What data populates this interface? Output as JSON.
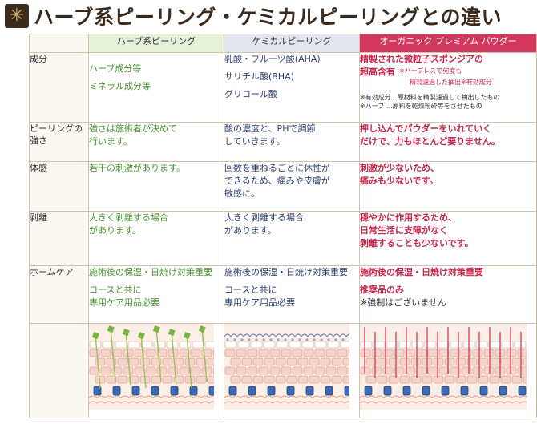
{
  "title": {
    "text": "ハーブ系ピーリング・ケミカルピーリングとの違い"
  },
  "columns": {
    "herb": "ハーブ系ピーリング",
    "chemical": "ケミカルピーリング",
    "organic": "オーガニック プレミアム パウダー"
  },
  "rows": {
    "ingredients": {
      "label": "成分",
      "herb": [
        "ハーブ成分等",
        "ミネラル成分等"
      ],
      "chemical": [
        "乳酸・フルーツ酸(AHA)",
        "サリチル酸(BHA)",
        "グリコール酸"
      ],
      "organic_main_1": "精製された微粒子スポンジアの",
      "organic_main_2": "超高含有",
      "organic_small_1": "※ハーブレスで何度も",
      "organic_small_2": "精製濾過した抽出※有効成分",
      "organic_note_1": "※有効成分…原材料を精製濾過して抽出したもの",
      "organic_note_2": "※ハーブ …原料を乾燥粉砕等をさせたもの"
    },
    "strength": {
      "label_1": "ピーリングの",
      "label_2": "強さ",
      "herb": [
        "強さは施術者が決めて",
        "行います。"
      ],
      "chemical": [
        "酸の濃度と、PHで調節",
        "していきます。"
      ],
      "organic": [
        "押し込んでパウダーをいれていく",
        "だけで、力もほとんど要りません。"
      ]
    },
    "feel": {
      "label": "体感",
      "herb": [
        "若干の刺激があります。"
      ],
      "chemical": [
        "回数を重ねるごとに休性が",
        "できるため、痛みや皮膚が",
        "敏感に。"
      ],
      "organic": [
        "刺激が少ないため、",
        "痛みも少ないです。"
      ]
    },
    "peeling": {
      "label": "剥離",
      "herb": [
        "大きく剥離する場合",
        "があります。"
      ],
      "chemical": [
        "大きく剥離する場合",
        "があります。"
      ],
      "organic": [
        "穏やかに作用するため、",
        "日常生活に支障がなく",
        "剥離することも少ないです。"
      ]
    },
    "homecare": {
      "label": "ホームケア",
      "herb": [
        "施術後の保湿・日焼け対策重要",
        "コースと共に",
        "専用ケア用品必要"
      ],
      "chemical": [
        "施術後の保湿・日焼け対策重要",
        "コースと共に",
        "専用ケア用品必要"
      ],
      "organic_1": "施術後の保湿・日焼け対策重要",
      "organic_2": "推奨品のみ",
      "organic_3": "※強制はございません"
    }
  },
  "colors": {
    "herb_header": "#e6f1d9",
    "chem_header": "#e3e6ee",
    "organic_header": "#d2385e",
    "herb_text": "#4a9230",
    "chem_text": "#2d3f6b",
    "organic_text": "#c9264c"
  }
}
